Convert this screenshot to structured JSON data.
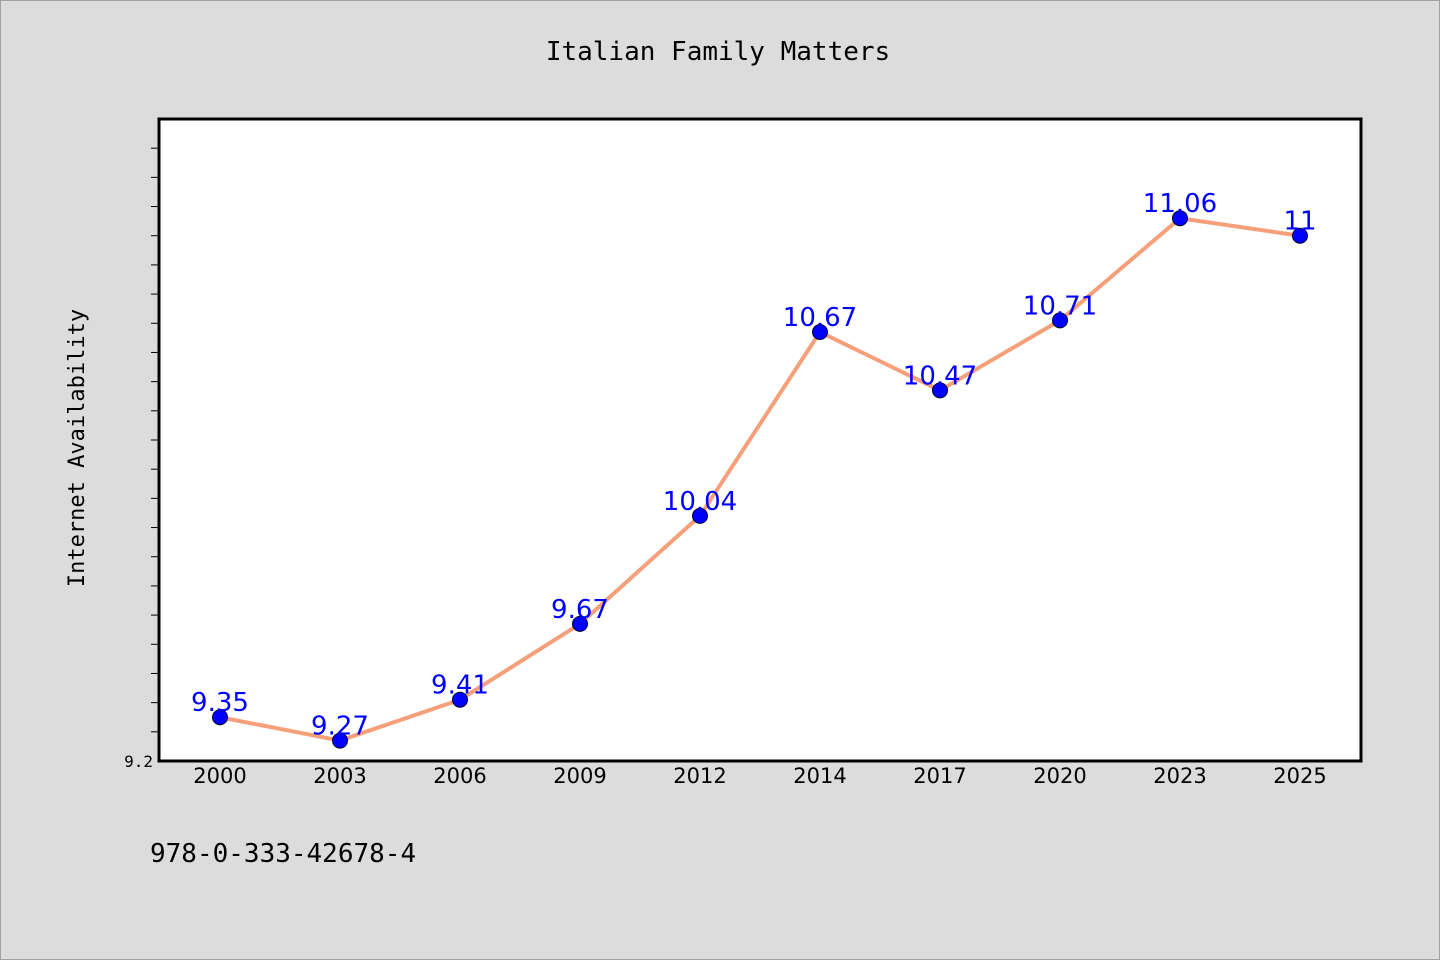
{
  "chart_data": {
    "type": "line",
    "title": "Italian Family Matters",
    "xlabel": "",
    "ylabel": "Internet Availability",
    "categories": [
      "2000",
      "2003",
      "2006",
      "2009",
      "2012",
      "2014",
      "2017",
      "2020",
      "2023",
      "2025"
    ],
    "series": [
      {
        "values": [
          9.35,
          9.27,
          9.41,
          9.67,
          10.04,
          10.67,
          10.47,
          10.71,
          11.06,
          11
        ]
      }
    ],
    "data_labels": [
      "9.35",
      "9.27",
      "9.41",
      "9.67",
      "10.04",
      "10.67",
      "10.47",
      "10.71",
      "11.06",
      "11"
    ],
    "ylim": [
      9.2,
      11.4
    ],
    "y_tick_labels": [
      "9.2"
    ],
    "grid": false,
    "legend": "none"
  },
  "footer": {
    "isbn": "978-0-333-42678-4"
  },
  "colors": {
    "background": "#dcdcdc",
    "plot_area": "#ffffff",
    "line": "#f5a07a",
    "marker": "#0000ff",
    "data_label": "#0000ff",
    "text": "#000000"
  }
}
